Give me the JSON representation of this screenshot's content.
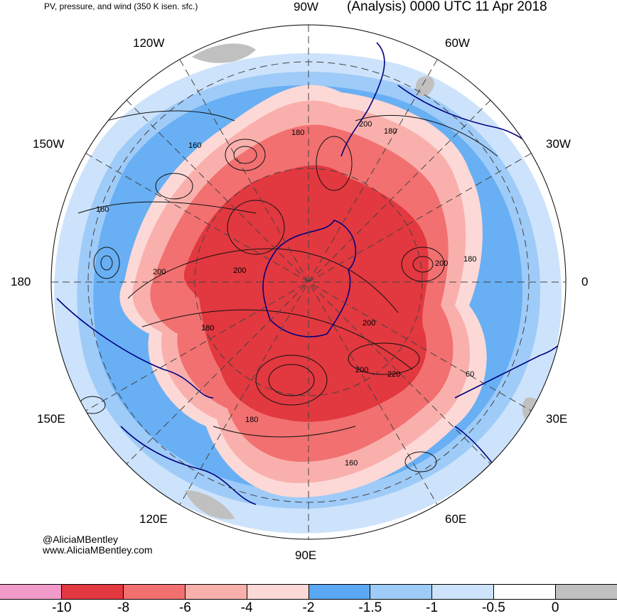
{
  "header": {
    "subtitle": "PV, pressure, and wind (350 K isen. sfc.)",
    "title": "(Analysis) 0000 UTC 11 Apr 2018"
  },
  "longitude_labels": {
    "lon_90w": "90W",
    "lon_60w": "60W",
    "lon_120w": "120W",
    "lon_30w": "30W",
    "lon_150w": "150W",
    "lon_180": "180",
    "lon_0": "0",
    "lon_150e": "150E",
    "lon_30e": "30E",
    "lon_120e": "120E",
    "lon_60e": "60E",
    "lon_90e": "90E"
  },
  "contour_labels": [
    "180",
    "200",
    "180",
    "160",
    "180",
    "200",
    "200",
    "180",
    "200",
    "180",
    "200",
    "200",
    "220",
    "180",
    "160",
    "60"
  ],
  "credit": {
    "handle": "@AliciaMBentley",
    "site": "www.AliciaMBentley.com"
  },
  "colorbar": {
    "colors": [
      "#f29ac9",
      "#e2383f",
      "#f27070",
      "#f9b0ac",
      "#fcd9d6",
      "#5aa7f3",
      "#9fcbf8",
      "#cde3fb",
      "#ffffff",
      "#c0c0c0"
    ],
    "ticks": [
      "-10",
      "-8",
      "-6",
      "-4",
      "-2",
      "-1.5",
      "-1",
      "-0.5",
      "0"
    ]
  }
}
